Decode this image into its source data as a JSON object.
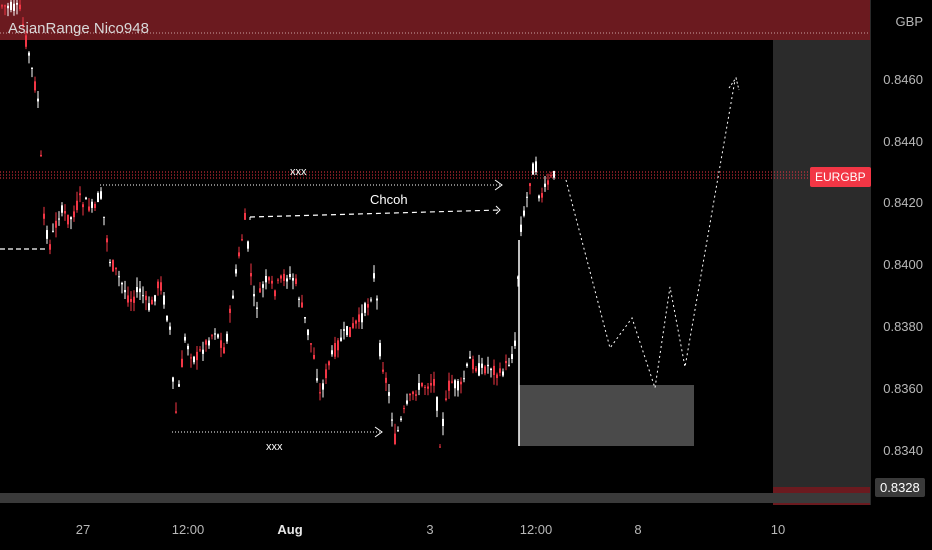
{
  "indicator_title": "AsianRange Nico948",
  "currency": "GBP",
  "symbol": "EURGBP",
  "current_price": "0.8328",
  "price_axis": [
    "0.8460",
    "0.8440",
    "0.8420",
    "0.8400",
    "0.8380",
    "0.8360",
    "0.8340"
  ],
  "time_axis": [
    {
      "label": "27",
      "bold": false
    },
    {
      "label": "12:00",
      "bold": false
    },
    {
      "label": "Aug",
      "bold": true
    },
    {
      "label": "3",
      "bold": false
    },
    {
      "label": "12:00",
      "bold": false
    },
    {
      "label": "8",
      "bold": false
    },
    {
      "label": "10",
      "bold": false
    }
  ],
  "annotations": {
    "top_xxx": "xxx",
    "bottom_xxx": "xxx",
    "chcoh": "Chcoh"
  },
  "colors": {
    "up_candle": "#ffffff",
    "down_candle": "#f23645",
    "symbol_tag": "#f23645",
    "range_band": "#6b1a1f"
  }
}
